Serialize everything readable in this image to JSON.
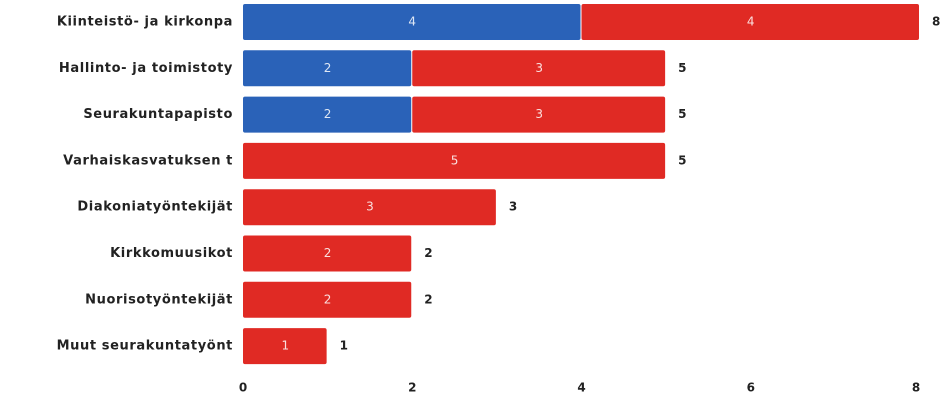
{
  "colors": {
    "series_blue": "#2a62b8",
    "series_red": "#e02a24"
  },
  "chart_data": {
    "type": "bar",
    "orientation": "horizontal",
    "stacked": true,
    "categories": [
      "Kiinteistö- ja kirkonpa",
      "Hallinto- ja toimistoty",
      "Seurakuntapapisto",
      "Varhaiskasvatuksen t",
      "Diakoniatyöntekijät",
      "Kirkkomuusikot",
      "Nuorisotyöntekijät",
      "Muut seurakuntatyönt"
    ],
    "series": [
      {
        "color": "#2a62b8",
        "values": [
          4,
          2,
          2,
          0,
          0,
          0,
          0,
          0
        ]
      },
      {
        "color": "#e02a24",
        "values": [
          4,
          3,
          3,
          5,
          3,
          2,
          2,
          1
        ]
      }
    ],
    "totals": [
      8,
      5,
      5,
      5,
      3,
      2,
      2,
      1
    ],
    "xlim": [
      0,
      8
    ],
    "xticks": [
      0,
      2,
      4,
      6,
      8
    ],
    "grid": false,
    "legend": "none"
  }
}
